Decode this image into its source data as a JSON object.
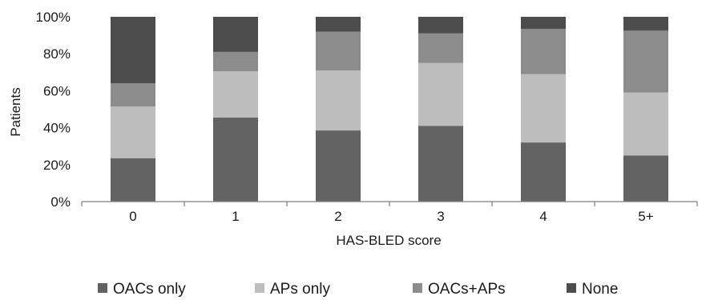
{
  "chart_data": {
    "type": "bar",
    "stacked": true,
    "categories": [
      "0",
      "1",
      "2",
      "3",
      "4",
      "5+"
    ],
    "series": [
      {
        "name": "OACs only",
        "color": "#636363",
        "values": [
          23.5,
          45.5,
          38.5,
          41.0,
          32.0,
          25.0
        ]
      },
      {
        "name": "APs only",
        "color": "#bdbdbd",
        "values": [
          28.0,
          25.0,
          32.5,
          34.0,
          37.0,
          34.0
        ]
      },
      {
        "name": "OACs+APs",
        "color": "#8c8c8c",
        "values": [
          12.5,
          10.5,
          21.0,
          16.0,
          24.5,
          33.5
        ]
      },
      {
        "name": "None",
        "color": "#4d4d4d",
        "values": [
          36.0,
          19.0,
          8.0,
          9.0,
          6.5,
          7.5
        ]
      }
    ],
    "xlabel": "HAS-BLED score",
    "ylabel": "Patients",
    "ylim": [
      0,
      100
    ],
    "yticks": [
      "0%",
      "20%",
      "40%",
      "60%",
      "80%",
      "100%"
    ],
    "grid": false,
    "legend": "bottom"
  }
}
